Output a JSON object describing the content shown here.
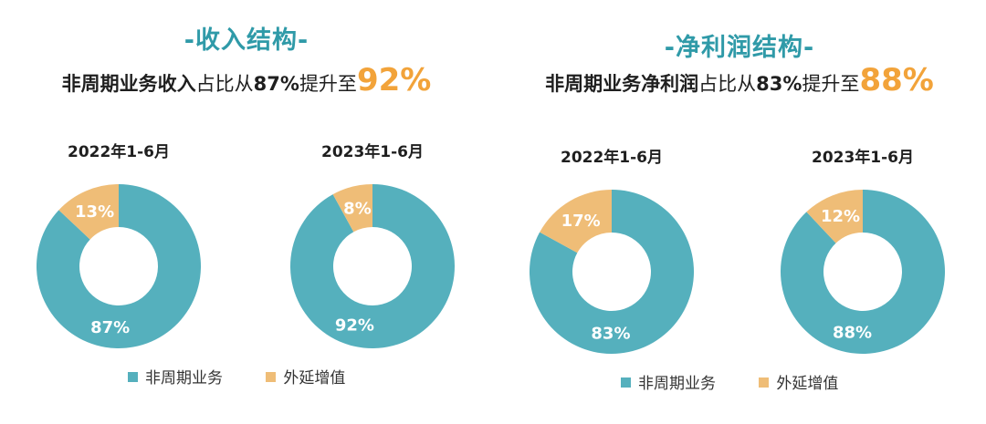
{
  "colors": {
    "accent": "#2f9aa8",
    "core": "#55b0bd",
    "ext": "#efbd77",
    "highlight": "#f2a33a"
  },
  "legend": {
    "core": "非周期业务",
    "ext": "外延增值"
  },
  "sections": [
    {
      "title": "-收入结构-",
      "subtitle": {
        "a": "非周期业务收入",
        "b": "占比从",
        "c": "87%",
        "d": "提升至",
        "e": "92%"
      }
    },
    {
      "title": "-净利润结构-",
      "subtitle": {
        "a": "非周期业务净利润",
        "b": "占比从",
        "c": "83%",
        "d": "提升至",
        "e": "88%"
      }
    }
  ],
  "chart_data": [
    {
      "type": "pie",
      "title": "2022年1-6月",
      "labels": [
        "非周期业务",
        "外延增值"
      ],
      "values": [
        87,
        13
      ],
      "value_labels": [
        "87%",
        "13%"
      ]
    },
    {
      "type": "pie",
      "title": "2023年1-6月",
      "labels": [
        "非周期业务",
        "外延增值"
      ],
      "values": [
        92,
        8
      ],
      "value_labels": [
        "92%",
        "8%"
      ]
    },
    {
      "type": "pie",
      "title": "2022年1-6月",
      "labels": [
        "非周期业务",
        "外延增值"
      ],
      "values": [
        83,
        17
      ],
      "value_labels": [
        "83%",
        "17%"
      ]
    },
    {
      "type": "pie",
      "title": "2023年1-6月",
      "labels": [
        "非周期业务",
        "外延增值"
      ],
      "values": [
        88,
        12
      ],
      "value_labels": [
        "88%",
        "12%"
      ]
    }
  ]
}
